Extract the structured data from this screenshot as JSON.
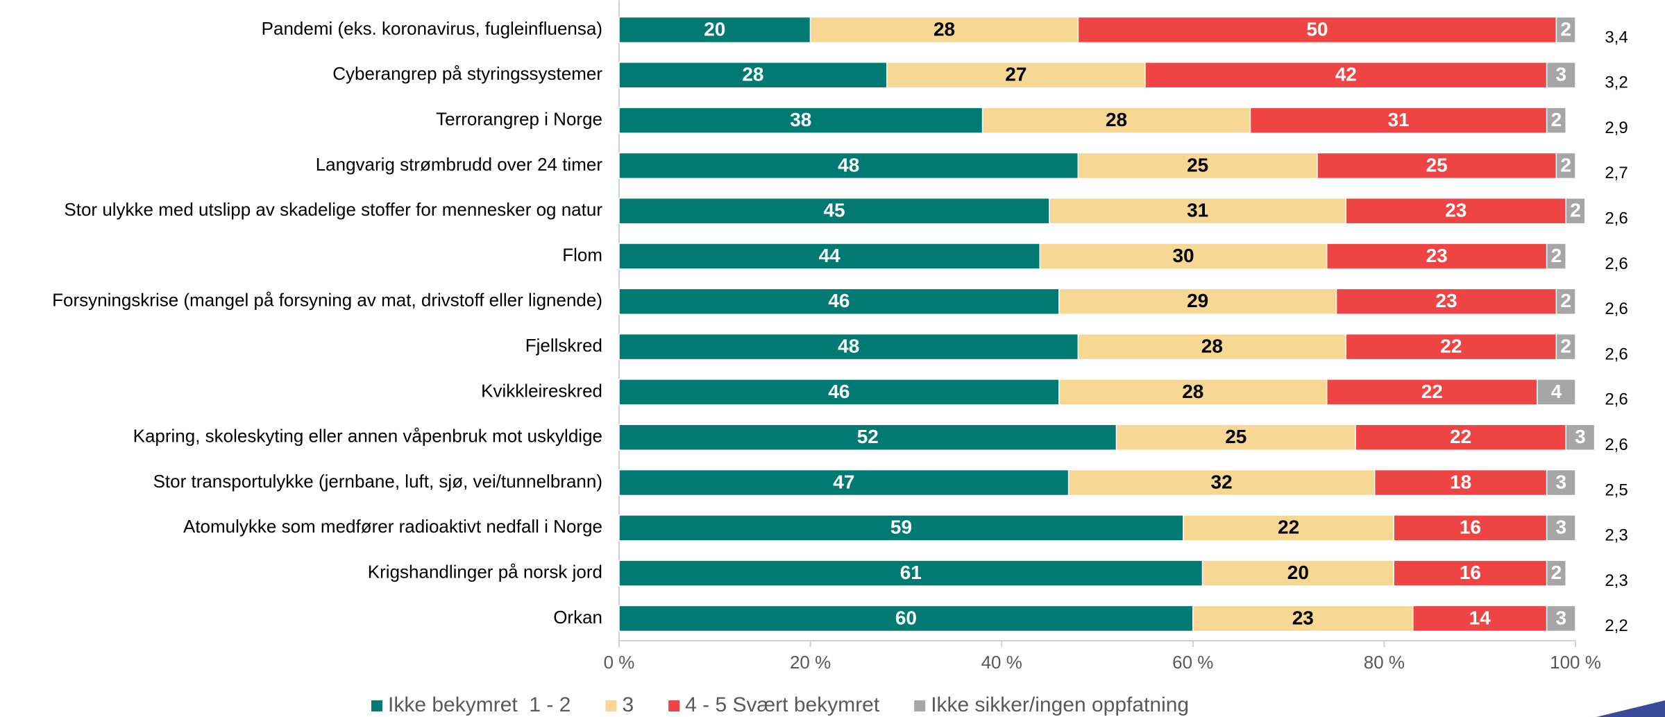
{
  "chart_data": {
    "type": "stacked_barh",
    "categories": [
      "Pandemi (eks. koronavirus, fugleinfluensa)",
      "Cyberangrep på styringssystemer",
      "Terrorangrep i Norge",
      "Langvarig strømbrudd over 24 timer",
      "Stor ulykke med utslipp av skadelige stoffer for mennesker og natur",
      "Flom",
      "Forsyningskrise (mangel på forsyning av mat, drivstoff eller lignende)",
      "Fjellskred",
      "Kvikkleireskred",
      "Kapring, skoleskyting eller annen våpenbruk mot uskyldige",
      "Stor transportulykke (jernbane, luft, sjø, vei/tunnelbrann)",
      "Atomulykke som medfører radioaktivt nedfall i Norge",
      "Krigshandlinger på norsk jord",
      "Orkan"
    ],
    "series": [
      {
        "name": "Ikke bekymret  1 - 2",
        "color": "#007a73",
        "label_color": "#ffffff",
        "values": [
          20,
          28,
          38,
          48,
          45,
          44,
          46,
          48,
          46,
          52,
          47,
          59,
          61,
          60
        ]
      },
      {
        "name": "3",
        "color": "#f7d794",
        "label_color": "#000000",
        "values": [
          28,
          27,
          28,
          25,
          31,
          30,
          29,
          28,
          28,
          25,
          32,
          22,
          20,
          23
        ]
      },
      {
        "name": "4 - 5 Svært bekymret",
        "color": "#ef4444",
        "label_color": "#ffffff",
        "values": [
          50,
          42,
          31,
          25,
          23,
          23,
          23,
          22,
          22,
          22,
          18,
          16,
          16,
          14
        ]
      },
      {
        "name": "Ikke sikker/ingen oppfatning",
        "color": "#a6a6a6",
        "label_color": "#ffffff",
        "values": [
          2,
          3,
          2,
          2,
          2,
          2,
          2,
          2,
          4,
          3,
          3,
          3,
          2,
          3
        ]
      }
    ],
    "means": [
      "3,4",
      "3,2",
      "2,9",
      "2,7",
      "2,6",
      "2,6",
      "2,6",
      "2,6",
      "2,6",
      "2,6",
      "2,5",
      "2,3",
      "2,3",
      "2,2"
    ],
    "xlim": [
      0,
      100
    ],
    "xticks": [
      {
        "value": 0,
        "label": "0 %"
      },
      {
        "value": 20,
        "label": "20 %"
      },
      {
        "value": 40,
        "label": "40 %"
      },
      {
        "value": 60,
        "label": "60 %"
      },
      {
        "value": 80,
        "label": "80 %"
      },
      {
        "value": 100,
        "label": "100 %"
      }
    ],
    "legend": "bottom"
  }
}
